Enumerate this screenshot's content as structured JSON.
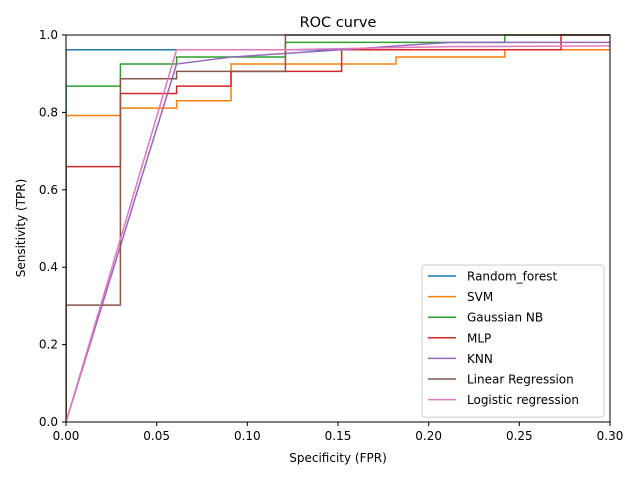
{
  "chart_data": {
    "type": "line",
    "title": "ROC curve",
    "xlabel": "Specificity (FPR)",
    "ylabel": "Sensitivity (TPR)",
    "xlim": [
      0,
      0.3
    ],
    "ylim": [
      0,
      1.0
    ],
    "xticks": [
      0.0,
      0.05,
      0.1,
      0.15,
      0.2,
      0.25,
      0.3
    ],
    "xtick_labels": [
      "0.00",
      "0.05",
      "0.10",
      "0.15",
      "0.20",
      "0.25",
      "0.30"
    ],
    "yticks": [
      0.0,
      0.2,
      0.4,
      0.6,
      0.8,
      1.0
    ],
    "ytick_labels": [
      "0.0",
      "0.2",
      "0.4",
      "0.6",
      "0.8",
      "1.0"
    ],
    "grid": false,
    "legend_position": "bottom-right",
    "series": [
      {
        "name": "Random_forest",
        "color": "#1f77b4",
        "x": [
          0,
          0,
          0.3
        ],
        "y": [
          0,
          0.962,
          0.962
        ]
      },
      {
        "name": "SVM",
        "color": "#ff7f0e",
        "x": [
          0,
          0,
          0.03,
          0.03,
          0.061,
          0.061,
          0.091,
          0.091,
          0.182,
          0.182,
          0.242,
          0.242,
          0.3
        ],
        "y": [
          0,
          0.792,
          0.792,
          0.811,
          0.811,
          0.83,
          0.83,
          0.925,
          0.925,
          0.943,
          0.943,
          0.962,
          0.962
        ]
      },
      {
        "name": "Gaussian NB",
        "color": "#2ca02c",
        "x": [
          0,
          0,
          0.03,
          0.03,
          0.061,
          0.061,
          0.121,
          0.121,
          0.242,
          0.242,
          0.3
        ],
        "y": [
          0,
          0.868,
          0.868,
          0.925,
          0.925,
          0.943,
          0.943,
          0.981,
          0.981,
          1.0,
          1.0
        ]
      },
      {
        "name": "MLP",
        "color": "#d62728",
        "x": [
          0,
          0,
          0.03,
          0.03,
          0.061,
          0.061,
          0.091,
          0.091,
          0.152,
          0.152,
          0.273,
          0.273,
          0.3
        ],
        "y": [
          0,
          0.66,
          0.66,
          0.849,
          0.849,
          0.868,
          0.868,
          0.906,
          0.906,
          0.962,
          0.962,
          1.0,
          1.0
        ]
      },
      {
        "name": "KNN",
        "color": "#9467bd",
        "x": [
          0,
          0.061,
          0.091,
          0.152,
          0.212,
          0.3
        ],
        "y": [
          0,
          0.925,
          0.943,
          0.962,
          0.981,
          0.981
        ]
      },
      {
        "name": "Linear Regression",
        "color": "#8c564b",
        "x": [
          0,
          0,
          0.03,
          0.03,
          0.061,
          0.061,
          0.121,
          0.121,
          0.3
        ],
        "y": [
          0,
          0.302,
          0.302,
          0.887,
          0.887,
          0.906,
          0.906,
          1.0,
          1.0
        ]
      },
      {
        "name": "Logistic regression",
        "color": "#e377c2",
        "x": [
          0,
          0.061,
          0.121,
          0.212,
          0.3
        ],
        "y": [
          0,
          0.962,
          0.962,
          0.97,
          0.972
        ]
      }
    ]
  }
}
